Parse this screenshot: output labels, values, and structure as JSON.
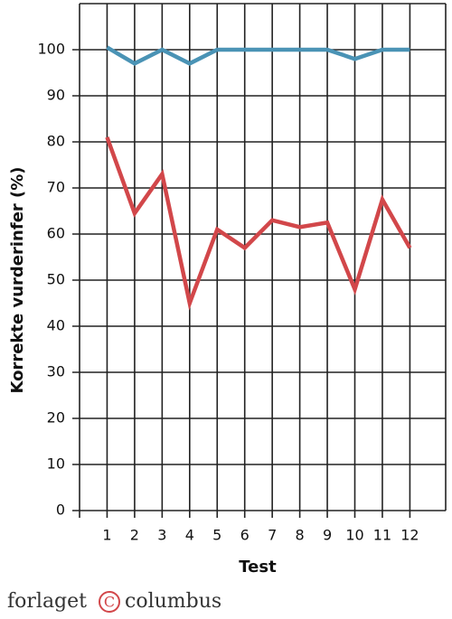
{
  "chart_data": {
    "type": "line",
    "y_label": "Korrekte vurderinfer (%)",
    "x_label": "Test",
    "x": [
      1,
      2,
      3,
      4,
      5,
      6,
      7,
      8,
      9,
      10,
      11,
      12
    ],
    "series": [
      {
        "color": "#4a93b5",
        "values": [
          100.5,
          97,
          100,
          97,
          100,
          100,
          100,
          100,
          100,
          98,
          100,
          100
        ]
      },
      {
        "color": "#d2474a",
        "values": [
          81,
          64.5,
          73,
          45,
          61,
          57,
          63,
          61.5,
          62.5,
          48,
          67.5,
          57
        ]
      }
    ],
    "xlim": [
      0,
      13.3
    ],
    "xticks": [
      1,
      2,
      3,
      4,
      5,
      6,
      7,
      8,
      9,
      10,
      11,
      12
    ],
    "ylim": [
      0,
      110
    ],
    "yticks": [
      0,
      10,
      20,
      30,
      40,
      50,
      60,
      70,
      80,
      90,
      100
    ],
    "grid": true,
    "footer": [
      "forlaget",
      "columbus"
    ]
  }
}
